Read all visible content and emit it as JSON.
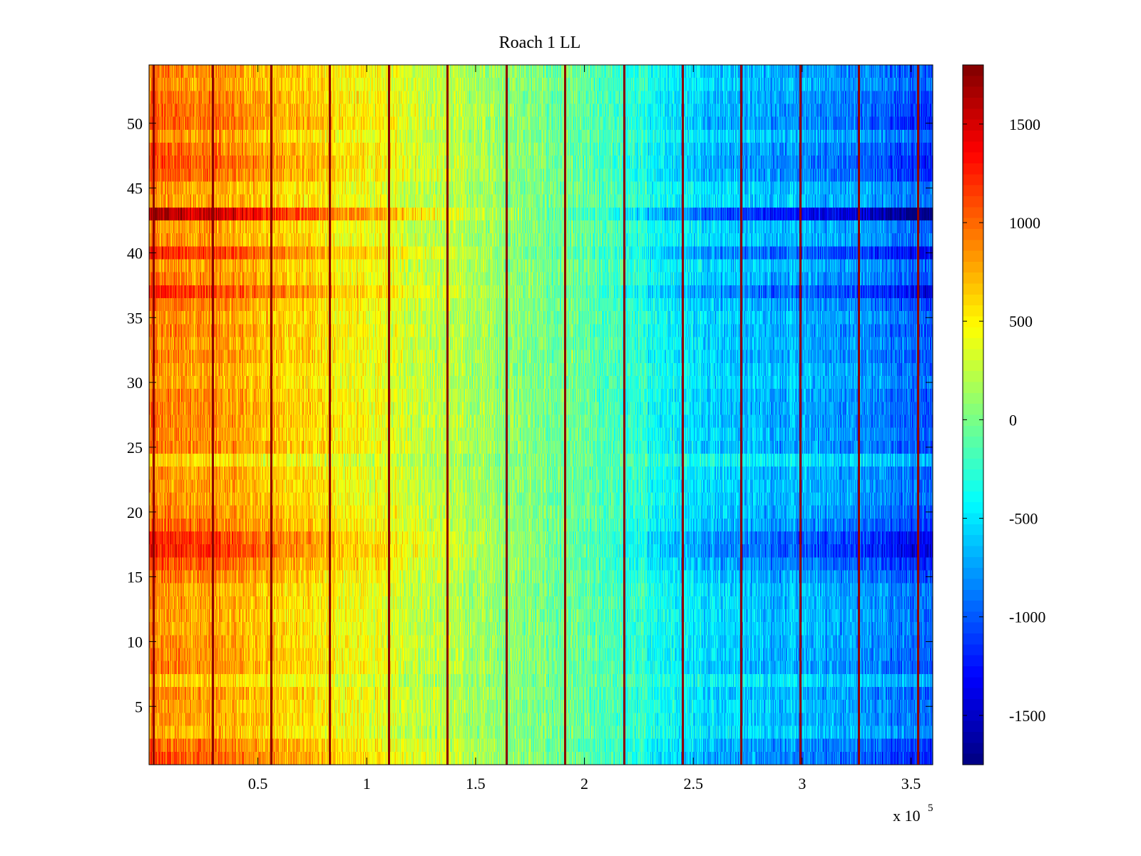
{
  "chart_data": {
    "type": "heatmap",
    "title": "Roach 1 LL",
    "xlabel": "",
    "ylabel": "",
    "x_multiplier": {
      "base": "x 10",
      "exponent": "5"
    },
    "xlim": [
      0,
      3.6
    ],
    "ylim": [
      0.5,
      54.5
    ],
    "x_ticks": [
      0.5,
      1,
      1.5,
      2,
      2.5,
      3,
      3.5
    ],
    "x_tick_labels": [
      "0.5",
      "1",
      "1.5",
      "2",
      "2.5",
      "3",
      "3.5"
    ],
    "y_ticks": [
      5,
      10,
      15,
      20,
      25,
      30,
      35,
      40,
      45,
      50
    ],
    "y_tick_labels": [
      "5",
      "10",
      "15",
      "20",
      "25",
      "30",
      "35",
      "40",
      "45",
      "50"
    ],
    "n_rows": 54,
    "colormap": "jet",
    "colorbar": {
      "range": [
        -1750,
        1800
      ],
      "ticks": [
        1500,
        1000,
        500,
        0,
        -500,
        -1000,
        -1500
      ],
      "tick_labels": [
        "1500",
        "1000",
        "500",
        "0",
        "-500",
        "-1000",
        "-1500"
      ]
    },
    "trend_profile": {
      "x": [
        0,
        0.3,
        0.6,
        0.9,
        1.2,
        1.5,
        1.8,
        2.1,
        2.4,
        2.7,
        3.0,
        3.3,
        3.6
      ],
      "value": [
        900,
        820,
        650,
        480,
        320,
        150,
        0,
        -150,
        -420,
        -600,
        -700,
        -800,
        -1000
      ]
    },
    "vertical_stripes_x": [
      0.02,
      0.29,
      0.56,
      0.83,
      1.1,
      1.37,
      1.64,
      1.91,
      2.18,
      2.45,
      2.72,
      2.99,
      3.26,
      3.53
    ],
    "row_intensity": [
      {
        "row": 1,
        "factor": 1.25
      },
      {
        "row": 2,
        "factor": 1.15
      },
      {
        "row": 3,
        "factor": 0.85
      },
      {
        "row": 17,
        "factor": 1.45
      },
      {
        "row": 18,
        "factor": 1.4
      },
      {
        "row": 16,
        "factor": 1.25
      },
      {
        "row": 19,
        "factor": 1.15
      },
      {
        "row": 20,
        "factor": 1.05
      },
      {
        "row": 37,
        "factor": 1.4
      },
      {
        "row": 40,
        "factor": 1.4
      },
      {
        "row": 43,
        "factor": 1.85
      },
      {
        "row": 46,
        "factor": 1.2
      },
      {
        "row": 47,
        "factor": 1.25
      },
      {
        "row": 48,
        "factor": 1.15
      },
      {
        "row": 50,
        "factor": 1.2
      },
      {
        "row": 51,
        "factor": 1.15
      },
      {
        "row": 52,
        "factor": 1.1
      },
      {
        "row": 24,
        "factor": 0.7
      },
      {
        "row": 7,
        "factor": 0.75
      }
    ]
  }
}
